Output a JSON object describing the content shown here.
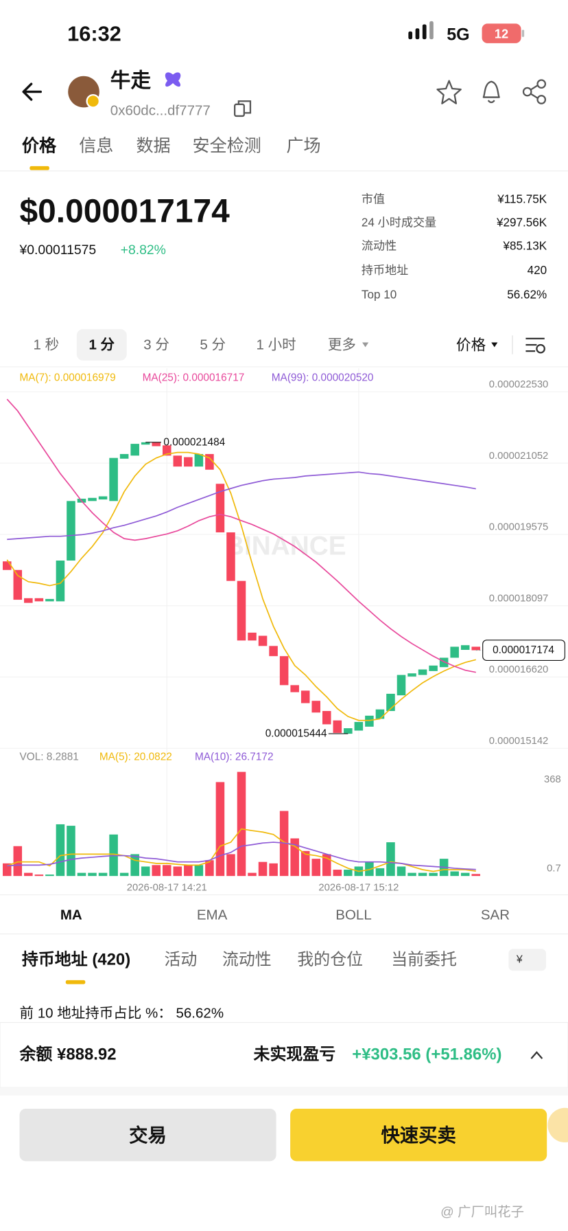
{
  "status_bar": {
    "time": "16:32",
    "network": "5G",
    "battery": "12"
  },
  "header": {
    "name": "牛走",
    "address": "0x60dc...df7777"
  },
  "tabs": [
    "价格",
    "信息",
    "数据",
    "安全检测",
    "广场"
  ],
  "price": {
    "usd": "$0.000017174",
    "cny": "¥0.00011575",
    "change": "+8.82%"
  },
  "stats": [
    [
      "市值",
      "¥115.75K"
    ],
    [
      "24 小时成交量",
      "¥297.56K"
    ],
    [
      "流动性",
      "¥85.13K"
    ],
    [
      "持币地址",
      "420"
    ],
    [
      "Top 10",
      "56.62%"
    ]
  ],
  "intervals": [
    "1 秒",
    "1 分",
    "3 分",
    "5 分",
    "1 小时",
    "更多"
  ],
  "price_menu": "价格",
  "chart_data": {
    "type": "candlestick",
    "categories": [
      null,
      null,
      null,
      null,
      null,
      null,
      null,
      null,
      null,
      null,
      null,
      null,
      null,
      null,
      null,
      "2026-08-17 14:21",
      null,
      null,
      null,
      null,
      null,
      null,
      null,
      null,
      null,
      null,
      null,
      null,
      null,
      null,
      null,
      null,
      null,
      "2026-08-17 15:12",
      null,
      null,
      null,
      null,
      null,
      null,
      null,
      null,
      null,
      null,
      null
    ],
    "open": [
      1.9016e-05,
      1.8838e-05,
      1.8253e-05,
      1.8253e-05,
      1.8188e-05,
      1.8188e-05,
      1.9033e-05,
      2.0234e-05,
      2.0267e-05,
      2.0299e-05,
      2.0267e-05,
      2.1144e-05,
      2.1208e-05,
      2.1436e-05,
      2.1484e-05,
      2.142e-05,
      2.1208e-05,
      2.1176e-05,
      2.0981e-05,
      2.1241e-05,
      2.0624e-05,
      1.9617e-05,
      1.8611e-05,
      1.7539e-05,
      1.7474e-05,
      1.7263e-05,
      1.7052e-05,
      1.6451e-05,
      1.6337e-05,
      1.6126e-05,
      1.5915e-05,
      1.572e-05,
      1.5444e-05,
      1.5509e-05,
      1.559e-05,
      1.5753e-05,
      1.5915e-05,
      1.624e-05,
      1.663e-05,
      1.6662e-05,
      1.6743e-05,
      1.6824e-05,
      1.7019e-05,
      1.7182e-05,
      1.7247e-05
    ],
    "close": [
      1.8838e-05,
      1.8221e-05,
      1.8156e-05,
      1.8188e-05,
      1.8237e-05,
      1.9033e-05,
      2.0267e-05,
      2.0315e-05,
      2.0332e-05,
      2.0364e-05,
      2.116e-05,
      2.1241e-05,
      2.1452e-05,
      2.1484e-05,
      2.1403e-05,
      2.1208e-05,
      2.0981e-05,
      2.0981e-05,
      2.1241e-05,
      2.0916e-05,
      1.9617e-05,
      1.8611e-05,
      1.7376e-05,
      1.7376e-05,
      1.7263e-05,
      1.7052e-05,
      1.6451e-05,
      1.6305e-05,
      1.6078e-05,
      1.5883e-05,
      1.5639e-05,
      1.5461e-05,
      1.5558e-05,
      1.5688e-05,
      1.5818e-05,
      1.5948e-05,
      1.6272e-05,
      1.6662e-05,
      1.6695e-05,
      1.6776e-05,
      1.6857e-05,
      1.7019e-05,
      1.7247e-05,
      1.7279e-05,
      1.7174e-05
    ],
    "up_color": "#2ebd85",
    "down_color": "#f6465d",
    "series": [
      {
        "name": "MA(7): 0.000016979",
        "color": "#f0b90b",
        "values": [
          1.9048e-05,
          1.8724e-05,
          1.8594e-05,
          1.8561e-05,
          1.8513e-05,
          1.8561e-05,
          1.8805e-05,
          1.9081e-05,
          1.9324e-05,
          1.9617e-05,
          2.0023e-05,
          2.0461e-05,
          2.0786e-05,
          2.1029e-05,
          2.1159e-05,
          2.124e-05,
          2.1273e-05,
          2.1273e-05,
          2.124e-05,
          2.1159e-05,
          2.0916e-05,
          2.0429e-05,
          1.9747e-05,
          1.8967e-05,
          1.8237e-05,
          1.7668e-05,
          1.7214e-05,
          1.6856e-05,
          1.6662e-05,
          1.6418e-05,
          1.6207e-05,
          1.5963e-05,
          1.5801e-05,
          1.572e-05,
          1.572e-05,
          1.5752e-05,
          1.5963e-05,
          1.6158e-05,
          1.6337e-05,
          1.6499e-05,
          1.6629e-05,
          1.6743e-05,
          1.684e-05,
          1.6921e-05,
          1.6979e-05
        ]
      },
      {
        "name": "MA(25): 0.000016717",
        "color": "#e8489b",
        "values": [
          2.2377e-05,
          2.2133e-05,
          2.1809e-05,
          2.1484e-05,
          2.1159e-05,
          2.0835e-05,
          2.0558e-05,
          2.0266e-05,
          2.0023e-05,
          1.9812e-05,
          1.9617e-05,
          1.9487e-05,
          1.9454e-05,
          1.9487e-05,
          1.9536e-05,
          1.9584e-05,
          1.9649e-05,
          1.9747e-05,
          1.986e-05,
          1.9941e-05,
          1.999e-05,
          1.9941e-05,
          1.986e-05,
          1.9779e-05,
          1.9682e-05,
          1.9584e-05,
          1.9454e-05,
          1.9324e-05,
          1.9162e-05,
          1.9e-05,
          1.8805e-05,
          1.861e-05,
          1.8399e-05,
          1.8188e-05,
          1.7993e-05,
          1.7798e-05,
          1.762e-05,
          1.7457e-05,
          1.7311e-05,
          1.7181e-05,
          1.7051e-05,
          1.6938e-05,
          1.684e-05,
          1.6759e-05,
          1.6717e-05
        ]
      },
      {
        "name": "MA(99): 0.000020520",
        "color": "#8e5ad6",
        "values": [
          1.9471e-05,
          1.9487e-05,
          1.9503e-05,
          1.9519e-05,
          1.9536e-05,
          1.9536e-05,
          1.9552e-05,
          1.9568e-05,
          1.9601e-05,
          1.9649e-05,
          1.9714e-05,
          1.9763e-05,
          1.9828e-05,
          1.9893e-05,
          1.9958e-05,
          2.0039e-05,
          2.0136e-05,
          2.0218e-05,
          2.0299e-05,
          2.038e-05,
          2.0461e-05,
          2.0526e-05,
          2.0591e-05,
          2.064e-05,
          2.0688e-05,
          2.0721e-05,
          2.0737e-05,
          2.0753e-05,
          2.0786e-05,
          2.0802e-05,
          2.0818e-05,
          2.0835e-05,
          2.0851e-05,
          2.0867e-05,
          2.0835e-05,
          2.0818e-05,
          2.0786e-05,
          2.0753e-05,
          2.0721e-05,
          2.0688e-05,
          2.0656e-05,
          2.0623e-05,
          2.0591e-05,
          2.0558e-05,
          2.052e-05
        ]
      }
    ],
    "ylim": [
      1.5142e-05,
      2.253e-05
    ],
    "yticks": [
      {
        "value": 2.253e-05,
        "label": "0.000022530"
      },
      {
        "value": 2.1052e-05,
        "label": "0.000021052"
      },
      {
        "value": 1.9575e-05,
        "label": "0.000019575"
      },
      {
        "value": 1.8097e-05,
        "label": "0.000018097"
      },
      {
        "value": 1.662e-05,
        "label": "0.000016620"
      },
      {
        "value": 1.5142e-05,
        "label": "0.000015142"
      }
    ],
    "grid": true,
    "max_label": 2.1484e-05,
    "min_label": 1.5444e-05,
    "last_label": 1.7174e-05,
    "volume": {
      "name": "VOL: 8.2881",
      "values": [
        52,
        123,
        13,
        6,
        6,
        213,
        207,
        13,
        13,
        13,
        171,
        13,
        90,
        39,
        45,
        45,
        39,
        45,
        45,
        65,
        387,
        90,
        429,
        13,
        58,
        52,
        268,
        155,
        103,
        71,
        90,
        26,
        26,
        39,
        58,
        32,
        139,
        39,
        13,
        13,
        13,
        71,
        19,
        13,
        8.2881
      ],
      "ylim": [
        0,
        439
      ],
      "yticks": [
        0.7,
        368
      ],
      "series": [
        {
          "name": "MA(5): 20.0822",
          "color": "#f0b90b",
          "values": [
            42,
            58,
            58,
            58,
            42,
            84,
            90,
            90,
            90,
            90,
            90,
            84,
            65,
            58,
            52,
            52,
            48,
            45,
            45,
            58,
            123,
            139,
            194,
            187,
            181,
            171,
            139,
            123,
            90,
            84,
            74,
            52,
            32,
            19,
            26,
            42,
            58,
            52,
            39,
            26,
            19,
            26,
            26,
            26,
            20.0822
          ]
        },
        {
          "name": "MA(10): 26.7172",
          "color": "#8e5ad6",
          "values": [
            42,
            45,
            45,
            45,
            48,
            58,
            68,
            74,
            77,
            81,
            84,
            84,
            81,
            74,
            71,
            65,
            58,
            58,
            58,
            65,
            84,
            97,
            123,
            129,
            136,
            139,
            136,
            129,
            116,
            103,
            90,
            77,
            65,
            58,
            58,
            58,
            55,
            52,
            45,
            42,
            39,
            36,
            32,
            29,
            26.7172
          ]
        }
      ]
    }
  },
  "indicators": [
    "MA",
    "EMA",
    "BOLL",
    "SAR"
  ],
  "holder_tabs": [
    "持币地址 (420)",
    "活动",
    "流动性",
    "我的仓位",
    "当前委托"
  ],
  "currency": "¥",
  "top10_share": "前 10 地址持币占比 %： 56.62%",
  "footer": {
    "balance": "余额 ¥888.92",
    "pnl_label": "未实现盈亏",
    "pnl_value": "+¥303.56 (+51.86%)"
  },
  "buttons": [
    "交易",
    "快速买卖"
  ],
  "watermark_chart": "BINANCE",
  "credit": "@ 广厂叫花子"
}
